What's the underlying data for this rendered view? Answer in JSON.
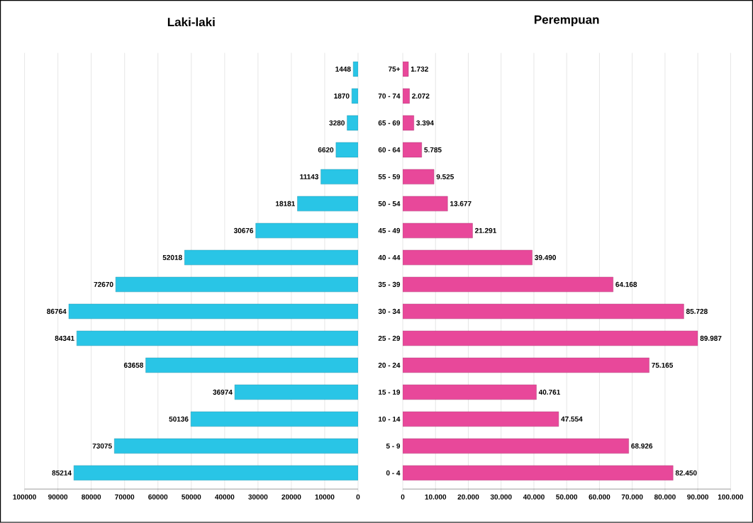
{
  "chart_data": [
    {
      "type": "bar",
      "orientation": "horizontal",
      "title": "Laki-laki",
      "categories": [
        null,
        null,
        null,
        null,
        null,
        null,
        null,
        null,
        null,
        null,
        null,
        null,
        null,
        null,
        null,
        null
      ],
      "values": [
        1448,
        1870,
        3280,
        6620,
        11143,
        18181,
        30676,
        52018,
        72670,
        86764,
        84341,
        63658,
        36974,
        50136,
        73075,
        85214
      ],
      "color": "#29c5e6",
      "data_labels": true,
      "tick_labels": "x",
      "grid": "x",
      "xlim": [
        100000,
        0
      ],
      "xticks": [
        100000,
        90000,
        80000,
        70000,
        60000,
        50000,
        40000,
        30000,
        20000,
        10000,
        0
      ]
    },
    {
      "type": "bar",
      "orientation": "horizontal",
      "title": "Perempuan",
      "categories": [
        "75+",
        "70 - 74",
        "65 - 69",
        "60 - 64",
        "55 - 59",
        "50 - 54",
        "45 - 49",
        "40 - 44",
        "35 - 39",
        "30 - 34",
        "25 - 29",
        "20 - 24",
        "15 - 19",
        "10 - 14",
        "5 - 9",
        "0 - 4"
      ],
      "values": [
        1732,
        2072,
        3394,
        5785,
        9525,
        13677,
        21291,
        39490,
        64168,
        85728,
        89987,
        75165,
        40761,
        47554,
        68926,
        82450
      ],
      "value_labels": [
        "1.732",
        "2.072",
        "3.394",
        "5.785",
        "9.525",
        "13.677",
        "21.291",
        "39.490",
        "64.168",
        "85.728",
        "89.987",
        "75.165",
        "40.761",
        "47.554",
        "68.926",
        "82.450"
      ],
      "color": "#e8489a",
      "grid": "x",
      "xlim": [
        0,
        100000
      ],
      "xticks": [
        0,
        {
          "value": 10000,
          "label": "10.000"
        },
        {
          "value": 20000,
          "label": "20.000"
        },
        {
          "value": 30000,
          "label": "30.000"
        },
        {
          "value": 40000,
          "label": "40.000"
        },
        {
          "value": 50000,
          "label": "50.000"
        },
        {
          "value": 60000,
          "label": "60.000"
        },
        {
          "value": 70000,
          "label": "70.000"
        },
        {
          "value": 80000,
          "label": "80.000"
        },
        {
          "value": 90000,
          "label": "90.000"
        },
        {
          "value": 100000,
          "label": "100.000"
        }
      ]
    }
  ]
}
